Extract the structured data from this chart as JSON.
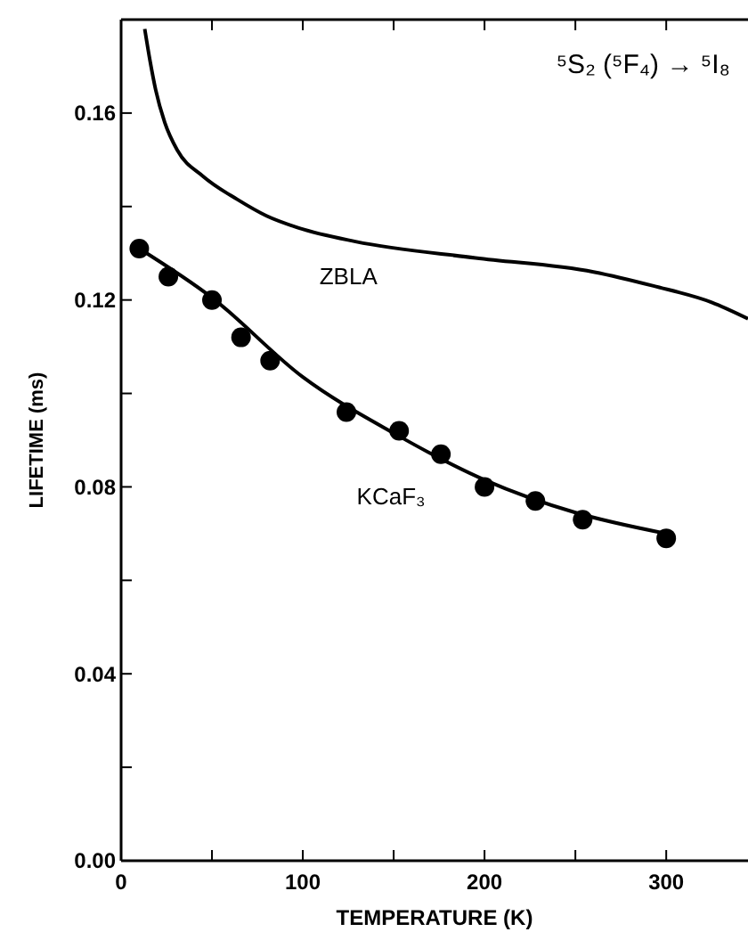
{
  "chart_data": {
    "type": "scatter",
    "title": "⁵S₂ (⁵F₄) → ⁵I₈",
    "xlabel": "TEMPERATURE (K)",
    "ylabel": "LIFETIME (ms)",
    "xlim": [
      0,
      345
    ],
    "ylim": [
      0,
      0.18
    ],
    "xticks": [
      0,
      {
        "value": 50,
        "label": null
      },
      100,
      {
        "value": 150,
        "label": null
      },
      200,
      {
        "value": 250,
        "label": null
      },
      300
    ],
    "yticks": [
      {
        "value": 0,
        "label": "0.00"
      },
      {
        "value": 0.02,
        "label": null
      },
      0.04,
      {
        "value": 0.06,
        "label": null
      },
      0.08,
      {
        "value": 0.1,
        "label": null
      },
      0.12,
      {
        "value": 0.14,
        "label": null
      },
      0.16
    ],
    "grid": false,
    "marker": "circle",
    "series": [
      {
        "type": "line",
        "name": "ZBLA",
        "color": "#000000",
        "marker": "none",
        "x": [
          13,
          16,
          19,
          24,
          31,
          45,
          64,
          80,
          97,
          129,
          195,
          260,
          293,
          325,
          345
        ],
        "values": [
          0.178,
          0.171,
          0.165,
          0.158,
          0.152,
          0.1465,
          0.1415,
          0.138,
          0.1355,
          0.1325,
          0.129,
          0.126,
          0.123,
          0.1195,
          0.116
        ]
      },
      {
        "type": "line",
        "color": "#000000",
        "marker": "none",
        "x": [
          10,
          50,
          100,
          150,
          200,
          250,
          300
        ],
        "values": [
          0.131,
          0.1205,
          0.1035,
          0.0915,
          0.0815,
          0.0745,
          0.07
        ]
      },
      {
        "name": "KCaF₃",
        "color": "#000000",
        "x": [
          10,
          26,
          50,
          66,
          82,
          124,
          153,
          176,
          200,
          228,
          254,
          300
        ],
        "values": [
          0.131,
          0.125,
          0.12,
          0.112,
          0.107,
          0.096,
          0.092,
          0.087,
          0.08,
          0.077,
          0.073,
          0.069
        ]
      }
    ]
  }
}
